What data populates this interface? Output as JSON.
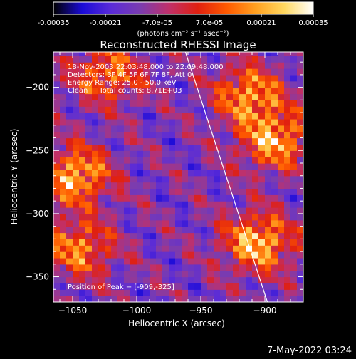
{
  "colorbar": {
    "tick_labels": [
      "-0.00035",
      "-0.00021",
      "-7.0e-05",
      "7.0e-05",
      "0.00021",
      "0.00035"
    ],
    "tick_values": [
      -0.00035,
      -0.00021,
      -7e-05,
      7e-05,
      0.00021,
      0.00035
    ],
    "range": [
      -0.00035,
      0.00035
    ],
    "units_label": "(photons cm⁻² s⁻¹ asec⁻²)",
    "colormap": [
      "#000000",
      "#1a0bd8",
      "#5a2bd8",
      "#7a3cb0",
      "#c0306a",
      "#e02010",
      "#ff5a00",
      "#ffa020",
      "#ffd860",
      "#ffffff"
    ]
  },
  "chart_data": {
    "type": "heatmap",
    "title": "Reconstructed RHESSI Image",
    "xlabel": "Heliocentric X (arcsec)",
    "ylabel": "Heliocentric Y (arcsec)",
    "xlim": [
      -1065,
      -870
    ],
    "ylim": [
      -370,
      -172
    ],
    "x_ticks": [
      -1050,
      -1000,
      -950,
      -900
    ],
    "y_ticks": [
      -350,
      -300,
      -250,
      -200
    ],
    "annotations": [
      "18-Nov-2003 22:03:48.000 to 22:09:48.000",
      "Detectors: 3F 4F 5F 6F 7F 8F, Att 0",
      "Energy Range: 25.0 - 50.0 keV",
      "Clean     Total counts: 8.71E+03"
    ],
    "peak_label": "Position of Peak = [-909,-325]",
    "peak_position": [
      -909,
      -325
    ],
    "limb_line": [
      [
        -962,
        -172
      ],
      [
        -898,
        -370
      ]
    ],
    "hot_spots": [
      {
        "x": -1050,
        "y": -272,
        "level": 0.00033
      },
      {
        "x": -908,
        "y": -325,
        "level": 0.00035
      },
      {
        "x": -895,
        "y": -244,
        "level": 0.00031
      },
      {
        "x": -915,
        "y": -208,
        "level": 0.00028
      },
      {
        "x": -1048,
        "y": -330,
        "level": 0.00024
      },
      {
        "x": -1025,
        "y": -192,
        "level": 0.00022
      }
    ]
  },
  "footer": {
    "date": "7-May-2022 03:24"
  }
}
